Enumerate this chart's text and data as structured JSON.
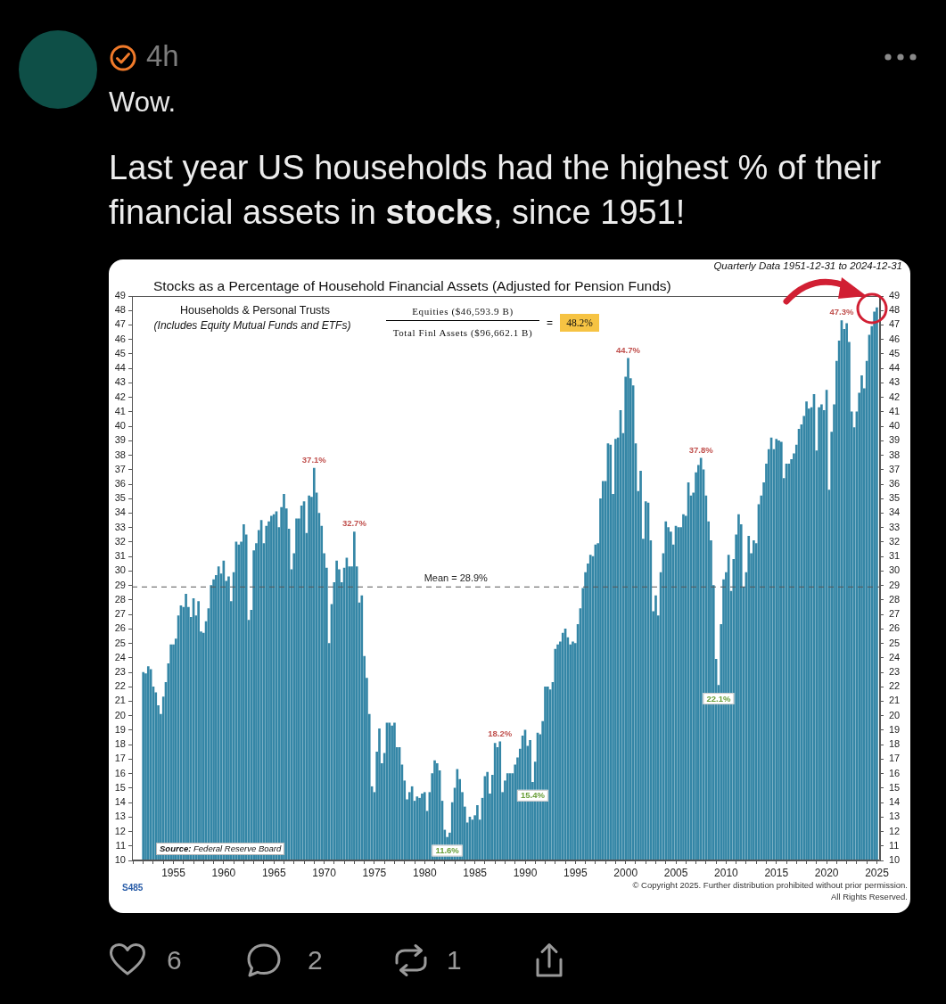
{
  "chart_data": {
    "type": "bar",
    "title": "Stocks as a Percentage of Household Financial Assets (Adjusted for Pension Funds)",
    "subtitle": "Quarterly Data 1951-12-31 to 2024-12-31",
    "annotations": [
      "4h",
      "Wow.",
      "Last year US households had the highest % of their",
      "financial assets in",
      "stocks",
      ", since 1951!",
      "Households & Personal Trusts",
      "(Includes Equity Mutual Funds and ETFs)",
      "Equities ($46,593.9 B)",
      "Total Finl Assets ($96,662.1 B)",
      "=",
      "48.2%",
      "Source:",
      "Federal Reserve Board",
      "S485",
      "© Copyright 2025. Further distribution prohibited without prior permission.",
      "All Rights Reserved.",
      "6",
      "2",
      "1"
    ],
    "x": [
      "1951-12-31",
      "1952-03-31",
      "1952-06-30",
      "1952-09-30",
      "1952-12-31",
      "1953-03-31",
      "1953-06-30",
      "1953-09-30",
      "1953-12-31",
      "1954-03-31",
      "1954-06-30",
      "1954-09-30",
      "1954-12-31",
      "1955-03-31",
      "1955-06-30",
      "1955-09-30",
      "1955-12-31",
      "1956-03-31",
      "1956-06-30",
      "1956-09-30",
      "1956-12-31",
      "1957-03-31",
      "1957-06-30",
      "1957-09-30",
      "1957-12-31",
      "1958-03-31",
      "1958-06-30",
      "1958-09-30",
      "1958-12-31",
      "1959-03-31",
      "1959-06-30",
      "1959-09-30",
      "1959-12-31",
      "1960-03-31",
      "1960-06-30",
      "1960-09-30",
      "1960-12-31",
      "1961-03-31",
      "1961-06-30",
      "1961-09-30",
      "1961-12-31",
      "1962-03-31",
      "1962-06-30",
      "1962-09-30",
      "1962-12-31",
      "1963-03-31",
      "1963-06-30",
      "1963-09-30",
      "1963-12-31",
      "1964-03-31",
      "1964-06-30",
      "1964-09-30",
      "1964-12-31",
      "1965-03-31",
      "1965-06-30",
      "1965-09-30",
      "1965-12-31",
      "1966-03-31",
      "1966-06-30",
      "1966-09-30",
      "1966-12-31",
      "1967-03-31",
      "1967-06-30",
      "1967-09-30",
      "1967-12-31",
      "1968-03-31",
      "1968-06-30",
      "1968-09-30",
      "1968-12-31",
      "1969-03-31",
      "1969-06-30",
      "1969-09-30",
      "1969-12-31",
      "1970-03-31",
      "1970-06-30",
      "1970-09-30",
      "1970-12-31",
      "1971-03-31",
      "1971-06-30",
      "1971-09-30",
      "1971-12-31",
      "1972-03-31",
      "1972-06-30",
      "1972-09-30",
      "1972-12-31",
      "1973-03-31",
      "1973-06-30",
      "1973-09-30",
      "1973-12-31",
      "1974-03-31",
      "1974-06-30",
      "1974-09-30",
      "1974-12-31",
      "1975-03-31",
      "1975-06-30",
      "1975-09-30",
      "1975-12-31",
      "1976-03-31",
      "1976-06-30",
      "1976-09-30",
      "1976-12-31",
      "1977-03-31",
      "1977-06-30",
      "1977-09-30",
      "1977-12-31",
      "1978-03-31",
      "1978-06-30",
      "1978-09-30",
      "1978-12-31",
      "1979-03-31",
      "1979-06-30",
      "1979-09-30",
      "1979-12-31",
      "1980-03-31",
      "1980-06-30",
      "1980-09-30",
      "1980-12-31",
      "1981-03-31",
      "1981-06-30",
      "1981-09-30",
      "1981-12-31",
      "1982-03-31",
      "1982-06-30",
      "1982-09-30",
      "1982-12-31",
      "1983-03-31",
      "1983-06-30",
      "1983-09-30",
      "1983-12-31",
      "1984-03-31",
      "1984-06-30",
      "1984-09-30",
      "1984-12-31",
      "1985-03-31",
      "1985-06-30",
      "1985-09-30",
      "1985-12-31",
      "1986-03-31",
      "1986-06-30",
      "1986-09-30",
      "1986-12-31",
      "1987-03-31",
      "1987-06-30",
      "1987-09-30",
      "1987-12-31",
      "1988-03-31",
      "1988-06-30",
      "1988-09-30",
      "1988-12-31",
      "1989-03-31",
      "1989-06-30",
      "1989-09-30",
      "1989-12-31",
      "1990-03-31",
      "1990-06-30",
      "1990-09-30",
      "1990-12-31",
      "1991-03-31",
      "1991-06-30",
      "1991-09-30",
      "1991-12-31",
      "1992-03-31",
      "1992-06-30",
      "1992-09-30",
      "1992-12-31",
      "1993-03-31",
      "1993-06-30",
      "1993-09-30",
      "1993-12-31",
      "1994-03-31",
      "1994-06-30",
      "1994-09-30",
      "1994-12-31",
      "1995-03-31",
      "1995-06-30",
      "1995-09-30",
      "1995-12-31",
      "1996-03-31",
      "1996-06-30",
      "1996-09-30",
      "1996-12-31",
      "1997-03-31",
      "1997-06-30",
      "1997-09-30",
      "1997-12-31",
      "1998-03-31",
      "1998-06-30",
      "1998-09-30",
      "1998-12-31",
      "1999-03-31",
      "1999-06-30",
      "1999-09-30",
      "1999-12-31",
      "2000-03-31",
      "2000-06-30",
      "2000-09-30",
      "2000-12-31",
      "2001-03-31",
      "2001-06-30",
      "2001-09-30",
      "2001-12-31",
      "2002-03-31",
      "2002-06-30",
      "2002-09-30",
      "2002-12-31",
      "2003-03-31",
      "2003-06-30",
      "2003-09-30",
      "2003-12-31",
      "2004-03-31",
      "2004-06-30",
      "2004-09-30",
      "2004-12-31",
      "2005-03-31",
      "2005-06-30",
      "2005-09-30",
      "2005-12-31",
      "2006-03-31",
      "2006-06-30",
      "2006-09-30",
      "2006-12-31",
      "2007-03-31",
      "2007-06-30",
      "2007-09-30",
      "2007-12-31",
      "2008-03-31",
      "2008-06-30",
      "2008-09-30",
      "2008-12-31",
      "2009-03-31",
      "2009-06-30",
      "2009-09-30",
      "2009-12-31",
      "2010-03-31",
      "2010-06-30",
      "2010-09-30",
      "2010-12-31",
      "2011-03-31",
      "2011-06-30",
      "2011-09-30",
      "2011-12-31",
      "2012-03-31",
      "2012-06-30",
      "2012-09-30",
      "2012-12-31",
      "2013-03-31",
      "2013-06-30",
      "2013-09-30",
      "2013-12-31",
      "2014-03-31",
      "2014-06-30",
      "2014-09-30",
      "2014-12-31",
      "2015-03-31",
      "2015-06-30",
      "2015-09-30",
      "2015-12-31",
      "2016-03-31",
      "2016-06-30",
      "2016-09-30",
      "2016-12-31",
      "2017-03-31",
      "2017-06-30",
      "2017-09-30",
      "2017-12-31",
      "2018-03-31",
      "2018-06-30",
      "2018-09-30",
      "2018-12-31",
      "2019-03-31",
      "2019-06-30",
      "2019-09-30",
      "2019-12-31",
      "2020-03-31",
      "2020-06-30",
      "2020-09-30",
      "2020-12-31",
      "2021-03-31",
      "2021-06-30",
      "2021-09-30",
      "2021-12-31",
      "2022-03-31",
      "2022-06-30",
      "2022-09-30",
      "2022-12-31",
      "2023-03-31",
      "2023-06-30",
      "2023-09-30",
      "2023-12-31",
      "2024-03-31",
      "2024-06-30",
      "2024-09-30",
      "2024-12-31"
    ],
    "values": [
      23.0,
      22.9,
      23.4,
      23.2,
      22.0,
      21.6,
      20.7,
      20.1,
      21.3,
      22.3,
      23.6,
      24.9,
      24.9,
      25.3,
      26.9,
      27.6,
      27.5,
      28.4,
      27.5,
      26.8,
      28.1,
      26.9,
      27.9,
      25.8,
      25.7,
      26.5,
      27.4,
      29.0,
      29.4,
      29.7,
      30.3,
      29.8,
      30.7,
      29.3,
      29.6,
      27.9,
      29.9,
      32.0,
      31.8,
      32.0,
      33.2,
      32.5,
      26.6,
      27.3,
      31.4,
      31.9,
      32.8,
      33.5,
      31.9,
      33.1,
      33.4,
      33.8,
      33.9,
      34.1,
      33.0,
      34.4,
      35.3,
      34.3,
      32.9,
      30.1,
      31.2,
      33.6,
      33.6,
      34.5,
      34.8,
      32.6,
      35.2,
      35.1,
      37.1,
      35.4,
      34.0,
      33.1,
      31.2,
      30.2,
      25.0,
      27.7,
      29.2,
      30.7,
      30.1,
      29.2,
      30.2,
      30.9,
      30.3,
      30.3,
      32.7,
      30.3,
      27.8,
      28.3,
      24.1,
      22.6,
      20.1,
      15.1,
      14.7,
      17.5,
      19.1,
      16.7,
      17.4,
      19.5,
      19.5,
      19.3,
      19.5,
      17.8,
      17.8,
      16.6,
      15.5,
      14.2,
      14.7,
      15.1,
      14.1,
      14.4,
      14.3,
      14.6,
      14.7,
      13.4,
      14.7,
      16.0,
      16.9,
      16.7,
      16.2,
      14.1,
      12.1,
      11.6,
      11.9,
      14.0,
      15.0,
      16.3,
      15.6,
      14.7,
      13.7,
      12.6,
      13.0,
      12.8,
      13.1,
      13.8,
      12.8,
      14.3,
      15.8,
      16.1,
      14.6,
      15.9,
      18.1,
      17.8,
      18.2,
      14.7,
      15.5,
      16.0,
      16.0,
      16.0,
      16.6,
      17.1,
      17.7,
      18.6,
      19.0,
      17.9,
      18.3,
      15.4,
      16.8,
      18.8,
      18.7,
      19.6,
      22.0,
      22.0,
      21.8,
      22.3,
      24.6,
      24.9,
      25.1,
      25.7,
      26.0,
      25.4,
      24.9,
      25.1,
      25.0,
      26.3,
      27.4,
      28.8,
      29.9,
      30.5,
      31.1,
      31.0,
      31.8,
      31.9,
      35.0,
      36.2,
      36.2,
      38.8,
      38.7,
      35.3,
      39.1,
      39.2,
      41.1,
      39.5,
      43.4,
      44.7,
      43.3,
      42.8,
      38.8,
      35.5,
      36.9,
      32.2,
      34.8,
      34.7,
      32.1,
      27.2,
      28.3,
      26.9,
      29.9,
      31.2,
      33.4,
      33.0,
      32.7,
      31.8,
      33.1,
      33.0,
      33.0,
      33.9,
      33.8,
      36.1,
      35.2,
      35.4,
      36.8,
      37.3,
      37.8,
      37.0,
      35.2,
      33.4,
      32.1,
      29.0,
      23.9,
      22.1,
      26.3,
      29.4,
      29.9,
      31.1,
      28.6,
      30.8,
      32.5,
      33.9,
      33.2,
      28.9,
      29.9,
      32.4,
      31.2,
      32.1,
      31.9,
      34.6,
      35.2,
      36.1,
      37.4,
      38.4,
      39.2,
      38.4,
      39.1,
      39.0,
      38.9,
      36.4,
      37.4,
      37.4,
      37.7,
      38.1,
      38.7,
      39.8,
      40.1,
      40.7,
      41.7,
      41.2,
      41.3,
      42.2,
      38.3,
      41.3,
      41.5,
      41.1,
      42.5,
      35.6,
      39.6,
      41.5,
      44.5,
      45.9,
      47.3,
      46.7,
      47.1,
      45.8,
      41.0,
      39.9,
      41.0,
      42.3,
      43.5,
      42.6,
      44.5,
      46.3,
      46.9,
      47.9,
      48.2
    ],
    "color": "#3486a6",
    "value_labels": [
      null,
      null,
      null,
      null,
      null,
      null,
      null,
      null,
      null,
      null,
      null,
      null,
      null,
      null,
      null,
      null,
      null,
      null,
      null,
      null,
      null,
      null,
      null,
      null,
      null,
      null,
      null,
      null,
      null,
      null,
      null,
      null,
      null,
      null,
      null,
      null,
      null,
      null,
      null,
      null,
      null,
      null,
      null,
      null,
      null,
      null,
      null,
      null,
      null,
      null,
      null,
      null,
      null,
      null,
      null,
      null,
      null,
      null,
      null,
      null,
      null,
      null,
      null,
      null,
      null,
      null,
      null,
      null,
      "37.1%",
      null,
      null,
      null,
      null,
      null,
      null,
      null,
      null,
      null,
      null,
      null,
      null,
      null,
      null,
      null,
      "32.7%",
      null,
      null,
      null,
      null,
      null,
      null,
      null,
      null,
      null,
      null,
      null,
      null,
      null,
      null,
      null,
      null,
      null,
      null,
      null,
      null,
      null,
      null,
      null,
      null,
      null,
      null,
      null,
      null,
      null,
      null,
      null,
      null,
      null,
      null,
      null,
      null,
      "11.6%",
      null,
      null,
      null,
      null,
      null,
      null,
      null,
      null,
      null,
      null,
      null,
      null,
      null,
      null,
      null,
      null,
      null,
      null,
      null,
      null,
      "18.2%",
      null,
      null,
      null,
      null,
      null,
      null,
      null,
      null,
      null,
      null,
      null,
      null,
      "15.4%",
      null,
      null,
      null,
      null,
      null,
      null,
      null,
      null,
      null,
      null,
      null,
      null,
      null,
      null,
      null,
      null,
      null,
      null,
      null,
      null,
      null,
      null,
      null,
      null,
      null,
      null,
      null,
      null,
      null,
      null,
      null,
      null,
      null,
      null,
      null,
      null,
      null,
      "44.7%",
      null,
      null,
      null,
      null,
      null,
      null,
      null,
      null,
      null,
      null,
      null,
      null,
      null,
      null,
      null,
      null,
      null,
      null,
      null,
      null,
      null,
      null,
      null,
      null,
      null,
      null,
      null,
      null,
      "37.8%",
      null,
      null,
      null,
      null,
      null,
      null,
      "22.1%",
      null,
      null,
      null,
      null,
      null,
      null,
      null,
      null,
      null,
      null,
      null,
      null,
      null,
      null,
      null,
      null,
      null,
      null,
      null,
      null,
      null,
      null,
      null,
      null,
      null,
      null,
      null,
      null,
      null,
      null,
      null,
      null,
      null,
      null,
      null,
      null,
      null,
      null,
      null,
      null,
      null,
      null,
      null,
      null,
      null,
      null,
      null,
      null,
      "47.3%",
      null,
      null,
      null,
      null,
      null,
      null,
      null,
      null,
      null,
      null,
      null,
      null,
      null,
      null
    ],
    "xlim": [
      "1950-11-15",
      "2025-04-25"
    ],
    "xticks": [
      {
        "value": "1951",
        "label": null
      },
      {
        "value": "1952",
        "label": null
      },
      {
        "value": "1953",
        "label": null
      },
      {
        "value": "1954",
        "label": null
      },
      "1955",
      {
        "value": "1956",
        "label": null
      },
      {
        "value": "1957",
        "label": null
      },
      {
        "value": "1958",
        "label": null
      },
      {
        "value": "1959",
        "label": null
      },
      "1960",
      {
        "value": "1961",
        "label": null
      },
      {
        "value": "1962",
        "label": null
      },
      {
        "value": "1963",
        "label": null
      },
      {
        "value": "1964",
        "label": null
      },
      "1965",
      {
        "value": "1966",
        "label": null
      },
      {
        "value": "1967",
        "label": null
      },
      {
        "value": "1968",
        "label": null
      },
      {
        "value": "1969",
        "label": null
      },
      "1970",
      {
        "value": "1971",
        "label": null
      },
      {
        "value": "1972",
        "label": null
      },
      {
        "value": "1973",
        "label": null
      },
      {
        "value": "1974",
        "label": null
      },
      "1975",
      {
        "value": "1976",
        "label": null
      },
      {
        "value": "1977",
        "label": null
      },
      {
        "value": "1978",
        "label": null
      },
      {
        "value": "1979",
        "label": null
      },
      "1980",
      {
        "value": "1981",
        "label": null
      },
      {
        "value": "1982",
        "label": null
      },
      {
        "value": "1983",
        "label": null
      },
      {
        "value": "1984",
        "label": null
      },
      "1985",
      {
        "value": "1986",
        "label": null
      },
      {
        "value": "1987",
        "label": null
      },
      {
        "value": "1988",
        "label": null
      },
      {
        "value": "1989",
        "label": null
      },
      "1990",
      {
        "value": "1991",
        "label": null
      },
      {
        "value": "1992",
        "label": null
      },
      {
        "value": "1993",
        "label": null
      },
      {
        "value": "1994",
        "label": null
      },
      "1995",
      {
        "value": "1996",
        "label": null
      },
      {
        "value": "1997",
        "label": null
      },
      {
        "value": "1998",
        "label": null
      },
      {
        "value": "1999",
        "label": null
      },
      "2000",
      {
        "value": "2001",
        "label": null
      },
      {
        "value": "2002",
        "label": null
      },
      {
        "value": "2003",
        "label": null
      },
      {
        "value": "2004",
        "label": null
      },
      "2005",
      {
        "value": "2006",
        "label": null
      },
      {
        "value": "2007",
        "label": null
      },
      {
        "value": "2008",
        "label": null
      },
      {
        "value": "2009",
        "label": null
      },
      "2010",
      {
        "value": "2011",
        "label": null
      },
      {
        "value": "2012",
        "label": null
      },
      {
        "value": "2013",
        "label": null
      },
      {
        "value": "2014",
        "label": null
      },
      "2015",
      {
        "value": "2016",
        "label": null
      },
      {
        "value": "2017",
        "label": null
      },
      {
        "value": "2018",
        "label": null
      },
      {
        "value": "2019",
        "label": null
      },
      "2020",
      {
        "value": "2021",
        "label": null
      },
      {
        "value": "2022",
        "label": null
      },
      {
        "value": "2023",
        "label": null
      },
      {
        "value": "2024",
        "label": null
      },
      "2025"
    ],
    "ylim": [
      10,
      49
    ],
    "yticks": [
      10,
      11,
      12,
      13,
      14,
      15,
      16,
      17,
      18,
      19,
      20,
      21,
      22,
      23,
      24,
      25,
      26,
      27,
      28,
      29,
      30,
      31,
      32,
      33,
      34,
      35,
      36,
      37,
      38,
      39,
      40,
      41,
      42,
      43,
      44,
      45,
      46,
      47,
      48,
      49
    ],
    "y2lim": [
      10,
      49
    ],
    "y2ticks": [
      10,
      11,
      12,
      13,
      14,
      15,
      16,
      17,
      18,
      19,
      20,
      21,
      22,
      23,
      24,
      25,
      26,
      27,
      28,
      29,
      30,
      31,
      32,
      33,
      34,
      35,
      36,
      37,
      38,
      39,
      40,
      41,
      42,
      43,
      44,
      45,
      46,
      47,
      48,
      49
    ],
    "ref_lines": [
      {
        "axis": "y",
        "value": 28.9,
        "label": "Mean = 28.9%",
        "color": "#555555",
        "line_style": "dashed"
      }
    ]
  }
}
